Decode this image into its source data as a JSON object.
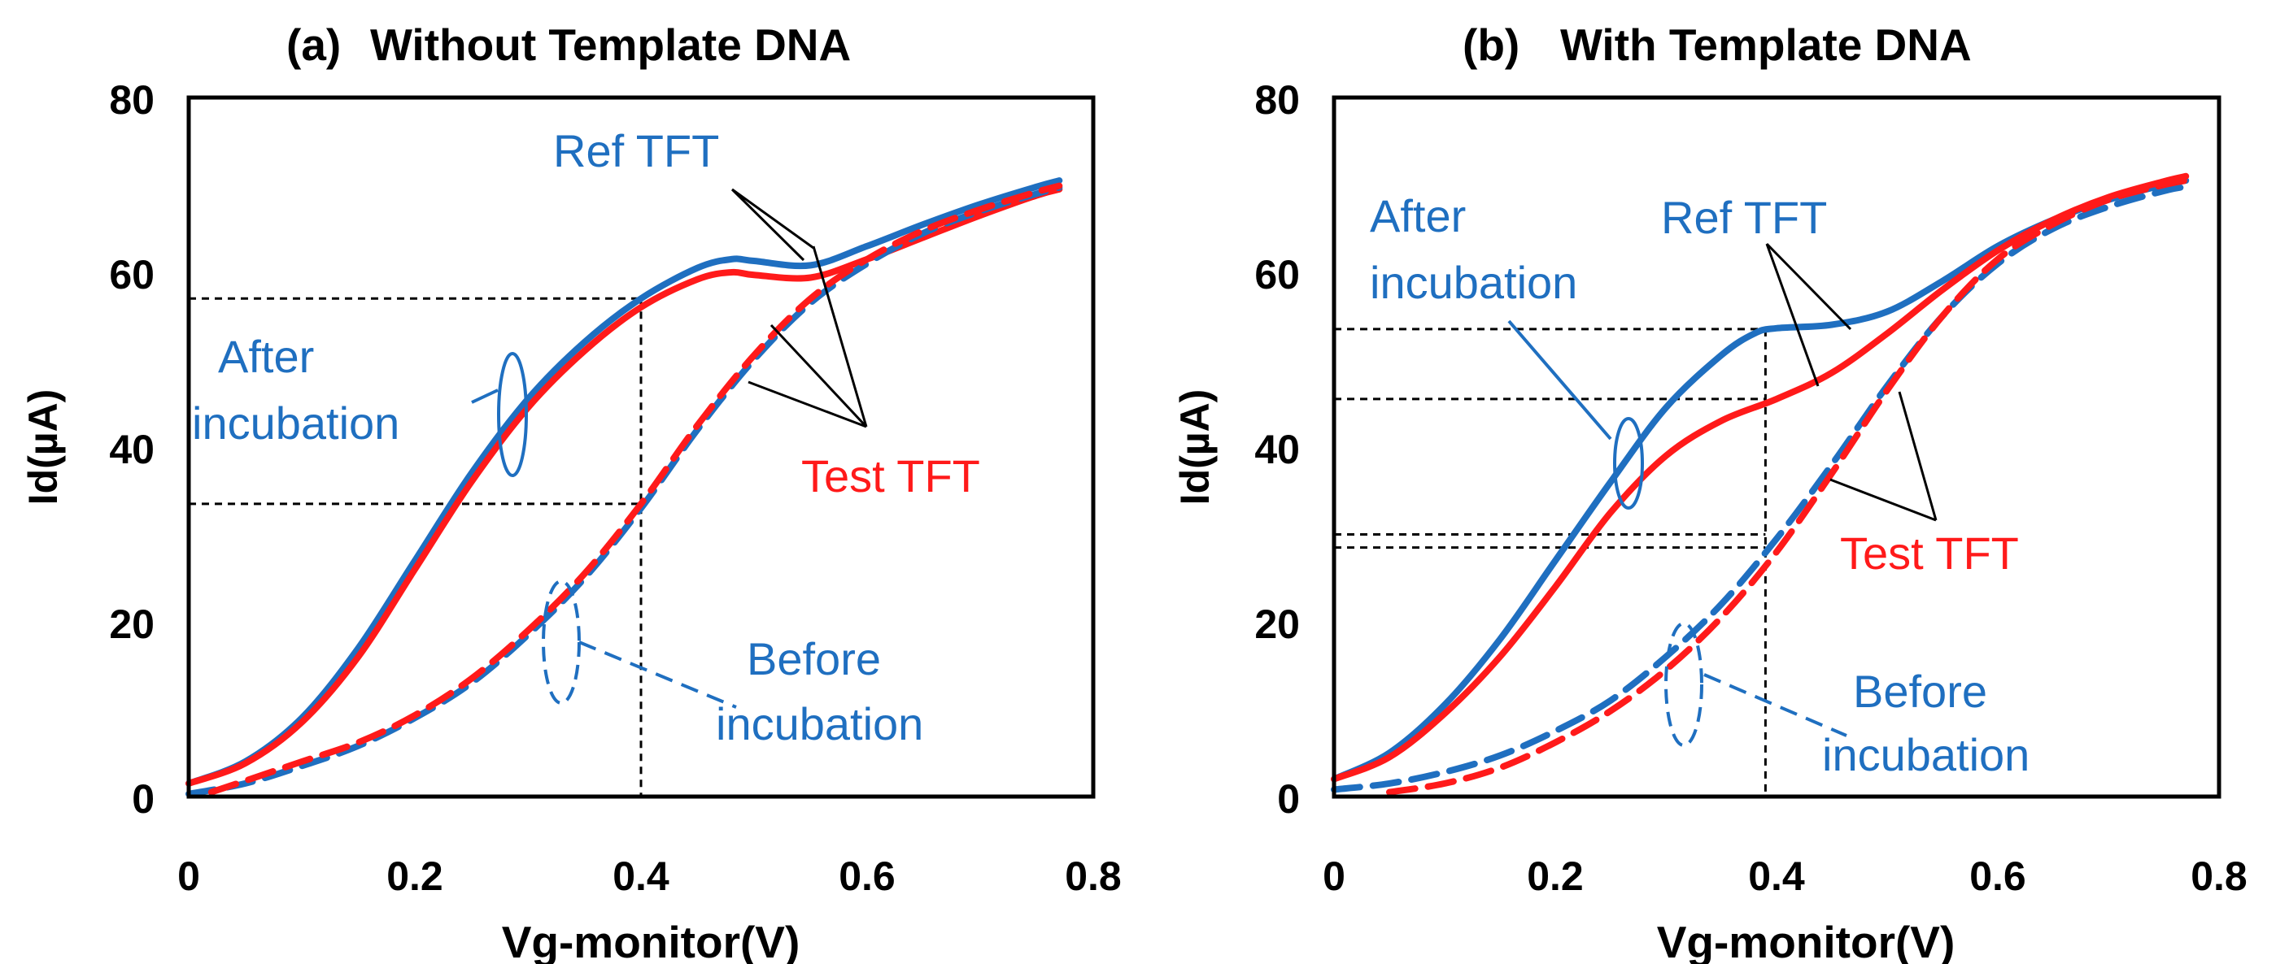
{
  "chart_data": [
    {
      "type": "line",
      "panel_letter": "(a)",
      "title": "Without Template DNA",
      "xlabel": "Vg-monitor(V)",
      "ylabel": "Id(µA)",
      "xlim": [
        0,
        0.8
      ],
      "ylim": [
        0,
        80
      ],
      "xticks": [
        "0",
        "0.2",
        "0.4",
        "0.6",
        "0.8"
      ],
      "yticks": [
        "0",
        "20",
        "40",
        "60",
        "80"
      ],
      "colors": {
        "ref": "#1f6fc0",
        "test": "#ff1a1a"
      },
      "series": [
        {
          "name": "Ref TFT after incubation",
          "color": "#1f6fc0",
          "dash": false,
          "x": [
            0,
            0.05,
            0.1,
            0.15,
            0.2,
            0.25,
            0.3,
            0.35,
            0.4,
            0.45,
            0.48,
            0.5,
            0.55,
            0.6,
            0.65,
            0.7,
            0.75,
            0.77
          ],
          "y": [
            1.5,
            4,
            9,
            17,
            27,
            37,
            45.5,
            52,
            57,
            60.5,
            61.5,
            61.3,
            60.8,
            63,
            65.5,
            67.8,
            69.8,
            70.5
          ]
        },
        {
          "name": "Test TFT after incubation",
          "color": "#ff1a1a",
          "dash": false,
          "x": [
            0,
            0.05,
            0.1,
            0.15,
            0.2,
            0.25,
            0.3,
            0.35,
            0.4,
            0.45,
            0.48,
            0.5,
            0.55,
            0.6,
            0.65,
            0.7,
            0.75,
            0.77
          ],
          "y": [
            1.5,
            3.8,
            8.5,
            16,
            26,
            36,
            44.5,
            51,
            56,
            59.2,
            60,
            59.7,
            59.4,
            61.5,
            64,
            66.5,
            68.8,
            69.5
          ]
        },
        {
          "name": "Ref TFT before incubation",
          "color": "#1f6fc0",
          "dash": true,
          "x": [
            0,
            0.05,
            0.1,
            0.15,
            0.2,
            0.25,
            0.3,
            0.35,
            0.4,
            0.45,
            0.5,
            0.55,
            0.6,
            0.65,
            0.7,
            0.75,
            0.77
          ],
          "y": [
            0.3,
            1.5,
            3.5,
            5.8,
            9,
            13,
            18.5,
            25,
            33,
            42,
            50,
            56.5,
            61,
            64.5,
            67,
            69,
            69.7
          ]
        },
        {
          "name": "Test TFT before incubation",
          "color": "#ff1a1a",
          "dash": true,
          "x": [
            0.02,
            0.05,
            0.1,
            0.15,
            0.2,
            0.25,
            0.3,
            0.35,
            0.4,
            0.45,
            0.5,
            0.55,
            0.6,
            0.65,
            0.7,
            0.75,
            0.77
          ],
          "y": [
            0.5,
            1.8,
            4,
            6.2,
            9.3,
            13.5,
            19,
            25.5,
            33.5,
            42.5,
            50.5,
            57,
            61.5,
            64.8,
            67.2,
            69.2,
            69.9
          ]
        }
      ],
      "guides": {
        "x": 0.4,
        "y_levels": [
          57,
          33.5
        ]
      },
      "annotations": {
        "ref_label": "Ref TFT",
        "test_label": "Test TFT",
        "after_line1": "After",
        "after_line2": "incubation",
        "before_line1": "Before",
        "before_line2": "incubation"
      }
    },
    {
      "type": "line",
      "panel_letter": "(b)",
      "title": "With Template DNA",
      "xlabel": "Vg-monitor(V)",
      "ylabel": "Id(µA)",
      "xlim": [
        0,
        0.8
      ],
      "ylim": [
        0,
        80
      ],
      "xticks": [
        "0",
        "0.2",
        "0.4",
        "0.6",
        "0.8"
      ],
      "yticks": [
        "0",
        "20",
        "40",
        "60",
        "80"
      ],
      "colors": {
        "ref": "#1f6fc0",
        "test": "#ff1a1a"
      },
      "series": [
        {
          "name": "Ref TFT after incubation",
          "color": "#1f6fc0",
          "dash": false,
          "x": [
            0,
            0.05,
            0.1,
            0.15,
            0.2,
            0.25,
            0.3,
            0.35,
            0.38,
            0.4,
            0.45,
            0.5,
            0.55,
            0.6,
            0.65,
            0.7,
            0.75,
            0.77
          ],
          "y": [
            2,
            5,
            10.5,
            18,
            27,
            36,
            44.5,
            50.5,
            53,
            53.6,
            54,
            55.5,
            59,
            63,
            66,
            68.3,
            70,
            70.5
          ]
        },
        {
          "name": "Test TFT after incubation",
          "color": "#ff1a1a",
          "dash": false,
          "x": [
            0,
            0.05,
            0.1,
            0.15,
            0.2,
            0.25,
            0.3,
            0.35,
            0.4,
            0.45,
            0.5,
            0.55,
            0.6,
            0.65,
            0.7,
            0.75,
            0.77
          ],
          "y": [
            2,
            4.5,
            9.5,
            16,
            24,
            32.5,
            39,
            43,
            45.5,
            48.5,
            53,
            58,
            62.5,
            66,
            68.6,
            70.4,
            71
          ]
        },
        {
          "name": "Ref TFT before incubation",
          "color": "#1f6fc0",
          "dash": true,
          "x": [
            0,
            0.05,
            0.1,
            0.15,
            0.2,
            0.25,
            0.3,
            0.35,
            0.4,
            0.45,
            0.5,
            0.55,
            0.6,
            0.65,
            0.7,
            0.75,
            0.77
          ],
          "y": [
            0.8,
            1.5,
            2.8,
            4.7,
            7.5,
            11,
            16,
            22,
            29.5,
            38,
            47,
            55,
            61,
            65,
            67.5,
            69.3,
            69.8
          ]
        },
        {
          "name": "Test TFT before incubation",
          "color": "#ff1a1a",
          "dash": true,
          "x": [
            0.05,
            0.1,
            0.15,
            0.2,
            0.25,
            0.3,
            0.35,
            0.4,
            0.45,
            0.5,
            0.55,
            0.6,
            0.65,
            0.7,
            0.75,
            0.77
          ],
          "y": [
            0.5,
            1.5,
            3.3,
            6.2,
            9.8,
            14.5,
            20.5,
            28,
            37,
            46.5,
            55,
            61.5,
            65.5,
            68.3,
            70,
            70.5
          ]
        }
      ],
      "guides": {
        "x": 0.39,
        "y_levels": [
          53.5,
          45.5,
          30,
          28.5
        ]
      },
      "annotations": {
        "ref_label": "Ref TFT",
        "test_label": "Test TFT",
        "after_line1": "After",
        "after_line2": "incubation",
        "before_line1": "Before",
        "before_line2": "incubation"
      }
    }
  ]
}
